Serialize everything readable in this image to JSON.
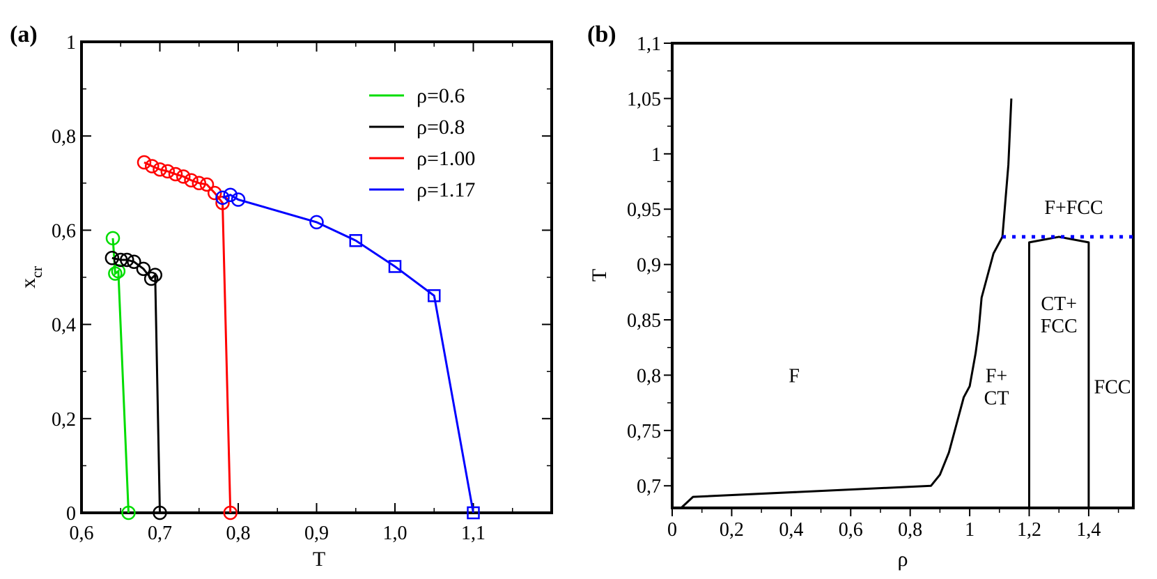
{
  "chart_data": [
    {
      "type": "line",
      "panel_label": "(a)",
      "xlabel": "T",
      "ylabel_main": "x",
      "ylabel_sub": "cr",
      "xlim": [
        0.6,
        1.2
      ],
      "ylim": [
        0,
        1
      ],
      "x_ticks": [
        {
          "value": 0.6,
          "label": "0,6"
        },
        {
          "value": 0.7,
          "label": "0,7"
        },
        {
          "value": 0.8,
          "label": "0,8"
        },
        {
          "value": 0.9,
          "label": "0,9"
        },
        {
          "value": 1.0,
          "label": "1,0"
        },
        {
          "value": 1.1,
          "label": "1,1"
        }
      ],
      "y_ticks": [
        {
          "value": 0,
          "label": "0"
        },
        {
          "value": 0.2,
          "label": "0,2"
        },
        {
          "value": 0.4,
          "label": "0,4"
        },
        {
          "value": 0.6,
          "label": "0,6"
        },
        {
          "value": 0.8,
          "label": "0,8"
        },
        {
          "value": 1,
          "label": "1"
        }
      ],
      "legend_position": "top-right",
      "series": [
        {
          "name": "ρ=0.6",
          "color": "#00dd00",
          "points": [
            {
              "x": 0.64,
              "y": 0.583,
              "marker": "circle"
            },
            {
              "x": 0.643,
              "y": 0.508,
              "marker": "circle"
            },
            {
              "x": 0.647,
              "y": 0.513,
              "marker": "circle"
            },
            {
              "x": 0.66,
              "y": 0.0,
              "marker": "circle"
            }
          ]
        },
        {
          "name": "ρ=0.8",
          "color": "#000000",
          "points": [
            {
              "x": 0.639,
              "y": 0.541,
              "marker": "circle"
            },
            {
              "x": 0.65,
              "y": 0.537,
              "marker": "circle"
            },
            {
              "x": 0.658,
              "y": 0.537,
              "marker": "circle"
            },
            {
              "x": 0.667,
              "y": 0.533,
              "marker": "circle"
            },
            {
              "x": 0.679,
              "y": 0.518,
              "marker": "circle"
            },
            {
              "x": 0.689,
              "y": 0.497,
              "marker": "circle"
            },
            {
              "x": 0.694,
              "y": 0.505,
              "marker": "circle"
            },
            {
              "x": 0.7,
              "y": 0.0,
              "marker": "circle"
            }
          ]
        },
        {
          "name": "ρ=1.00",
          "color": "#ff0000",
          "points": [
            {
              "x": 0.68,
              "y": 0.744,
              "marker": "circle"
            },
            {
              "x": 0.69,
              "y": 0.736,
              "marker": "circle"
            },
            {
              "x": 0.7,
              "y": 0.729,
              "marker": "circle"
            },
            {
              "x": 0.71,
              "y": 0.725,
              "marker": "circle"
            },
            {
              "x": 0.72,
              "y": 0.719,
              "marker": "circle"
            },
            {
              "x": 0.73,
              "y": 0.714,
              "marker": "circle"
            },
            {
              "x": 0.74,
              "y": 0.706,
              "marker": "circle"
            },
            {
              "x": 0.75,
              "y": 0.7,
              "marker": "circle"
            },
            {
              "x": 0.76,
              "y": 0.697,
              "marker": "circle"
            },
            {
              "x": 0.77,
              "y": 0.679,
              "marker": "circle"
            },
            {
              "x": 0.78,
              "y": 0.658,
              "marker": "circle"
            },
            {
              "x": 0.79,
              "y": 0.0,
              "marker": "circle"
            }
          ]
        },
        {
          "name": "ρ=1.17",
          "color": "#0000ff",
          "points": [
            {
              "x": 0.78,
              "y": 0.669,
              "marker": "circle"
            },
            {
              "x": 0.79,
              "y": 0.675,
              "marker": "circle"
            },
            {
              "x": 0.8,
              "y": 0.665,
              "marker": "circle"
            },
            {
              "x": 0.9,
              "y": 0.617,
              "marker": "circle"
            },
            {
              "x": 0.95,
              "y": 0.578,
              "marker": "square"
            },
            {
              "x": 1.0,
              "y": 0.523,
              "marker": "square"
            },
            {
              "x": 1.05,
              "y": 0.461,
              "marker": "square"
            },
            {
              "x": 1.1,
              "y": 0.0,
              "marker": "square"
            }
          ]
        }
      ]
    },
    {
      "type": "line",
      "panel_label": "(b)",
      "xlabel": "ρ",
      "ylabel": "T",
      "xlim": [
        0,
        1.55
      ],
      "ylim": [
        0.68,
        1.1
      ],
      "x_ticks": [
        {
          "value": 0,
          "label": "0"
        },
        {
          "value": 0.2,
          "label": "0,2"
        },
        {
          "value": 0.4,
          "label": "0,4"
        },
        {
          "value": 0.6,
          "label": "0,6"
        },
        {
          "value": 0.8,
          "label": "0,8"
        },
        {
          "value": 1.0,
          "label": "1"
        },
        {
          "value": 1.2,
          "label": "1,2"
        },
        {
          "value": 1.4,
          "label": "1,4"
        }
      ],
      "y_ticks": [
        {
          "value": 0.7,
          "label": "0,7"
        },
        {
          "value": 0.75,
          "label": "0,75"
        },
        {
          "value": 0.8,
          "label": "0,8"
        },
        {
          "value": 0.85,
          "label": "0,85"
        },
        {
          "value": 0.9,
          "label": "0,9"
        },
        {
          "value": 0.95,
          "label": "0,95"
        },
        {
          "value": 1.0,
          "label": "1"
        },
        {
          "value": 1.05,
          "label": "1,05"
        },
        {
          "value": 1.1,
          "label": "1,1"
        }
      ],
      "boundaries": [
        {
          "style": "solid",
          "color": "#000000",
          "points": [
            [
              0.03,
              0.68
            ],
            [
              0.07,
              0.69
            ],
            [
              0.87,
              0.7
            ],
            [
              0.9,
              0.71
            ],
            [
              0.93,
              0.73
            ],
            [
              0.96,
              0.76
            ],
            [
              0.98,
              0.78
            ],
            [
              1.0,
              0.79
            ],
            [
              1.02,
              0.82
            ],
            [
              1.03,
              0.84
            ],
            [
              1.04,
              0.87
            ],
            [
              1.06,
              0.89
            ],
            [
              1.08,
              0.91
            ],
            [
              1.11,
              0.925
            ],
            [
              1.13,
              0.99
            ],
            [
              1.14,
              1.05
            ]
          ]
        },
        {
          "style": "solid",
          "color": "#000000",
          "points": [
            [
              1.2,
              0.68
            ],
            [
              1.2,
              0.92
            ],
            [
              1.3,
              0.925
            ],
            [
              1.4,
              0.92
            ],
            [
              1.4,
              0.68
            ]
          ]
        },
        {
          "style": "dotted",
          "color": "#0000ff",
          "points": [
            [
              1.11,
              0.925
            ],
            [
              1.55,
              0.925
            ]
          ]
        }
      ],
      "regions": [
        {
          "lines": [
            "F"
          ],
          "x": 0.41,
          "y": 0.8
        },
        {
          "lines": [
            "F+",
            "CT"
          ],
          "x": 1.09,
          "y": 0.79
        },
        {
          "lines": [
            "CT+",
            "FCC"
          ],
          "x": 1.3,
          "y": 0.855
        },
        {
          "lines": [
            "FCC"
          ],
          "x": 1.48,
          "y": 0.79
        },
        {
          "lines": [
            "F+FCC"
          ],
          "x": 1.35,
          "y": 0.952
        }
      ]
    }
  ]
}
